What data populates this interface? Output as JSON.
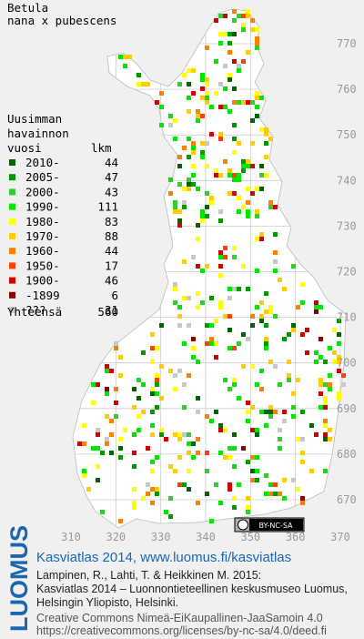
{
  "title": "Betula",
  "subtitle": "nana x pubescens",
  "legend": {
    "heading": [
      "Uusimman",
      "havainnon",
      "vuosi"
    ],
    "count_heading": "lkm",
    "items": [
      {
        "label": "2010-",
        "count": 44,
        "color": "#006400"
      },
      {
        "label": "2005-",
        "count": 47,
        "color": "#009a00"
      },
      {
        "label": "2000-",
        "count": 43,
        "color": "#33cc33"
      },
      {
        "label": "1990-",
        "count": 111,
        "color": "#00e600"
      },
      {
        "label": "1980-",
        "count": 83,
        "color": "#ffff00"
      },
      {
        "label": "1970-",
        "count": 88,
        "color": "#ffcc00"
      },
      {
        "label": "1960-",
        "count": 44,
        "color": "#ff8000"
      },
      {
        "label": "1950-",
        "count": 17,
        "color": "#ff4000"
      },
      {
        "label": "1900-",
        "count": 46,
        "color": "#d40000"
      },
      {
        "label": "-1899",
        "count": 6,
        "color": "#8b0000"
      },
      {
        "label": "???",
        "count": 31,
        "color": "#c8c8c8"
      }
    ],
    "total_label": "Yhteensä",
    "total": 560
  },
  "grid": {
    "y_labels": [
      770,
      760,
      750,
      740,
      730,
      720,
      710,
      700,
      690,
      680,
      670
    ],
    "x_labels": [
      310,
      320,
      330,
      340,
      350,
      360,
      370
    ]
  },
  "cc_badge": "BY-NC-SA",
  "footer": {
    "logo": "LUOMUS",
    "atlas": "Kasviatlas 2014, www.luomus.fi/kasviatlas",
    "citation": [
      "Lampinen, R., Lahti, T. & Heikkinen M. 2015:",
      "Kasviatlas 2014 – Luonnontieteellinen keskusmuseo Luomus,",
      "Helsingin Yliopisto, Helsinki."
    ],
    "license": [
      "Creative Commons Nimeä-EiKaupallinen-JaaSamoin 4.0",
      "https://creativecommons.org/licenses/by-nc-sa/4.0/deed.fi"
    ]
  }
}
